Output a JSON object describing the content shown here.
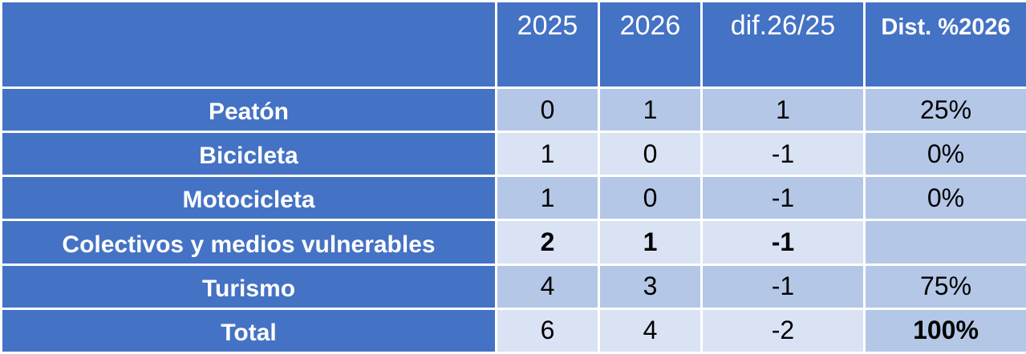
{
  "table": {
    "header": [
      "2025",
      "2026",
      "dif.26/25",
      "Dist. %2026"
    ],
    "rows": [
      {
        "label": "Peatón",
        "cells": [
          "0",
          "1",
          "1",
          "25%"
        ]
      },
      {
        "label": "Bicicleta",
        "cells": [
          "1",
          "0",
          "-1",
          "0%"
        ]
      },
      {
        "label": "Motocicleta",
        "cells": [
          "1",
          "0",
          "-1",
          "0%"
        ]
      },
      {
        "label": "Colectivos y medios vulnerables",
        "cells": [
          "2",
          "1",
          "-1",
          null
        ]
      },
      {
        "label": "Turismo",
        "cells": [
          "4",
          "3",
          "-1",
          "75%"
        ]
      },
      {
        "label": "Total",
        "cells": [
          "6",
          "4",
          "-2",
          "100%"
        ]
      }
    ]
  }
}
